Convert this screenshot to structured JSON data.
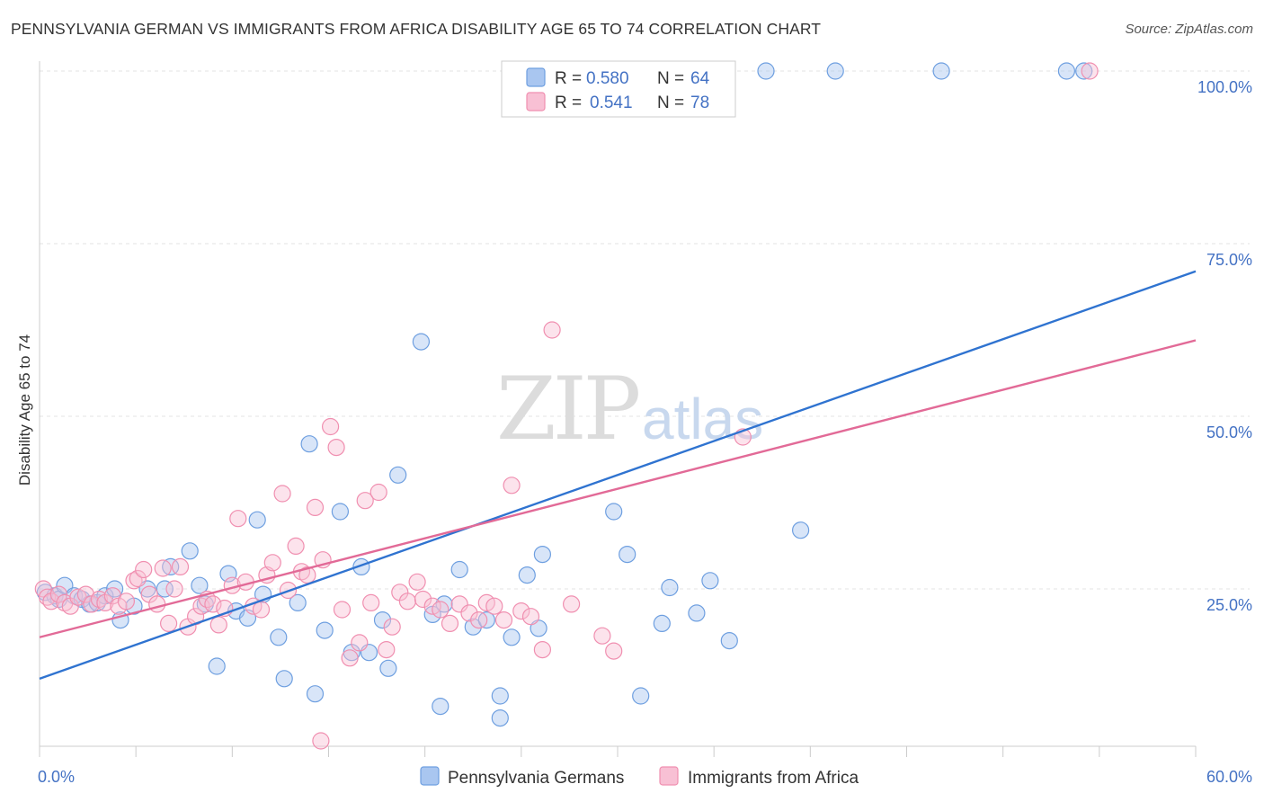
{
  "title": "PENNSYLVANIA GERMAN VS IMMIGRANTS FROM AFRICA DISABILITY AGE 65 TO 74 CORRELATION CHART",
  "source": "Source: ZipAtlas.com",
  "watermark": {
    "zip": "ZIP",
    "atlas": "atlas"
  },
  "chart_data": {
    "type": "scatter",
    "title": "PENNSYLVANIA GERMAN VS IMMIGRANTS FROM AFRICA DISABILITY AGE 65 TO 74 CORRELATION CHART",
    "xlabel": "",
    "ylabel": "Disability Age 65 to 74",
    "xlim": [
      0,
      60
    ],
    "ylim": [
      0,
      105
    ],
    "x_tick_labels": [
      "0.0%",
      "60.0%"
    ],
    "y_ticks": [
      25,
      50,
      75,
      100
    ],
    "y_tick_labels": [
      "25.0%",
      "50.0%",
      "75.0%",
      "100.0%"
    ],
    "grid": true,
    "legend_placement": "top-center",
    "legend": [
      {
        "r_label": "R =",
        "r_value": "0.580",
        "n_label": "N =",
        "n_value": "64"
      },
      {
        "r_label": "R =",
        "r_value": "0.541",
        "n_label": "N =",
        "n_value": "78"
      }
    ],
    "series": [
      {
        "name": "Pennsylvania Germans",
        "color": "#6E9FE0",
        "fill": "#A9C6F0",
        "line_color": "#2F73D0",
        "trend": {
          "x": [
            0,
            60
          ],
          "y": [
            12.0,
            71.0
          ]
        },
        "points": [
          [
            0.3,
            24.5
          ],
          [
            0.8,
            24.0
          ],
          [
            1.0,
            23.5
          ],
          [
            1.3,
            25.5
          ],
          [
            1.8,
            24.0
          ],
          [
            2.2,
            23.5
          ],
          [
            2.6,
            22.8
          ],
          [
            3.0,
            23.0
          ],
          [
            3.4,
            24.0
          ],
          [
            3.9,
            25.0
          ],
          [
            4.2,
            20.5
          ],
          [
            4.9,
            22.5
          ],
          [
            5.6,
            25.0
          ],
          [
            6.5,
            25.0
          ],
          [
            6.8,
            28.2
          ],
          [
            7.8,
            30.5
          ],
          [
            8.3,
            25.5
          ],
          [
            8.6,
            22.8
          ],
          [
            9.2,
            13.8
          ],
          [
            9.8,
            27.2
          ],
          [
            10.2,
            21.8
          ],
          [
            10.8,
            20.8
          ],
          [
            11.3,
            35.0
          ],
          [
            11.6,
            24.2
          ],
          [
            12.4,
            18.0
          ],
          [
            12.7,
            12.0
          ],
          [
            13.4,
            23.0
          ],
          [
            14.0,
            46.0
          ],
          [
            14.3,
            9.8
          ],
          [
            14.8,
            19.0
          ],
          [
            15.6,
            36.2
          ],
          [
            16.2,
            15.8
          ],
          [
            16.7,
            28.2
          ],
          [
            17.1,
            15.8
          ],
          [
            17.8,
            20.5
          ],
          [
            18.1,
            13.5
          ],
          [
            18.6,
            41.5
          ],
          [
            19.8,
            60.8
          ],
          [
            20.4,
            21.3
          ],
          [
            20.8,
            8.0
          ],
          [
            21.0,
            22.8
          ],
          [
            21.8,
            27.8
          ],
          [
            22.5,
            19.5
          ],
          [
            23.2,
            20.5
          ],
          [
            23.9,
            9.5
          ],
          [
            23.9,
            6.3
          ],
          [
            24.5,
            18.0
          ],
          [
            25.3,
            27.0
          ],
          [
            25.9,
            19.3
          ],
          [
            26.1,
            30.0
          ],
          [
            29.8,
            36.2
          ],
          [
            30.5,
            30.0
          ],
          [
            31.2,
            9.5
          ],
          [
            32.3,
            20.0
          ],
          [
            32.7,
            25.2
          ],
          [
            34.1,
            21.5
          ],
          [
            34.8,
            26.2
          ],
          [
            35.8,
            17.5
          ],
          [
            37.7,
            100.0
          ],
          [
            39.5,
            33.5
          ],
          [
            41.3,
            100.0
          ],
          [
            46.8,
            100.0
          ],
          [
            53.3,
            100.0
          ],
          [
            54.2,
            100.0
          ]
        ]
      },
      {
        "name": "Immigrants from Africa",
        "color": "#F08FB0",
        "fill": "#F8C0D4",
        "line_color": "#E26A97",
        "trend": {
          "x": [
            0,
            60
          ],
          "y": [
            18.0,
            61.0
          ]
        },
        "points": [
          [
            0.2,
            25.0
          ],
          [
            0.4,
            23.8
          ],
          [
            0.6,
            23.2
          ],
          [
            1.0,
            24.2
          ],
          [
            1.3,
            23.0
          ],
          [
            1.6,
            22.5
          ],
          [
            2.0,
            23.8
          ],
          [
            2.4,
            24.2
          ],
          [
            2.7,
            22.8
          ],
          [
            3.1,
            23.5
          ],
          [
            3.4,
            23.0
          ],
          [
            3.8,
            24.0
          ],
          [
            4.1,
            22.5
          ],
          [
            4.5,
            23.2
          ],
          [
            4.9,
            26.2
          ],
          [
            5.1,
            26.5
          ],
          [
            5.4,
            27.8
          ],
          [
            5.7,
            24.2
          ],
          [
            6.1,
            22.8
          ],
          [
            6.4,
            28.0
          ],
          [
            6.7,
            20.0
          ],
          [
            7.0,
            25.0
          ],
          [
            7.3,
            28.2
          ],
          [
            7.7,
            19.5
          ],
          [
            8.1,
            21.0
          ],
          [
            8.4,
            22.5
          ],
          [
            8.7,
            23.5
          ],
          [
            9.0,
            22.8
          ],
          [
            9.3,
            19.8
          ],
          [
            9.6,
            22.2
          ],
          [
            10.0,
            25.5
          ],
          [
            10.3,
            35.2
          ],
          [
            10.7,
            26.0
          ],
          [
            11.1,
            22.5
          ],
          [
            11.5,
            22.0
          ],
          [
            11.8,
            27.0
          ],
          [
            12.1,
            28.8
          ],
          [
            12.6,
            38.8
          ],
          [
            12.9,
            24.8
          ],
          [
            13.3,
            31.2
          ],
          [
            13.6,
            27.5
          ],
          [
            13.9,
            27.0
          ],
          [
            14.3,
            36.8
          ],
          [
            14.7,
            29.2
          ],
          [
            15.1,
            48.5
          ],
          [
            15.4,
            45.5
          ],
          [
            15.7,
            22.0
          ],
          [
            16.1,
            15.0
          ],
          [
            16.6,
            17.2
          ],
          [
            16.9,
            37.8
          ],
          [
            17.2,
            23.0
          ],
          [
            17.6,
            39.0
          ],
          [
            18.0,
            16.2
          ],
          [
            18.3,
            19.5
          ],
          [
            18.7,
            24.5
          ],
          [
            19.1,
            23.2
          ],
          [
            19.6,
            26.0
          ],
          [
            19.9,
            23.5
          ],
          [
            20.4,
            22.5
          ],
          [
            20.8,
            22.0
          ],
          [
            21.3,
            20.0
          ],
          [
            21.8,
            22.8
          ],
          [
            22.3,
            21.5
          ],
          [
            22.8,
            20.5
          ],
          [
            23.2,
            23.0
          ],
          [
            23.6,
            22.5
          ],
          [
            24.1,
            20.5
          ],
          [
            24.5,
            40.0
          ],
          [
            25.0,
            21.8
          ],
          [
            25.5,
            21.0
          ],
          [
            26.1,
            16.2
          ],
          [
            26.6,
            62.5
          ],
          [
            27.6,
            22.8
          ],
          [
            29.2,
            18.2
          ],
          [
            29.8,
            16.0
          ],
          [
            36.5,
            47.0
          ],
          [
            14.6,
            3.0
          ],
          [
            54.5,
            100.0
          ]
        ]
      }
    ]
  },
  "bottom_legend": [
    {
      "label": "Pennsylvania Germans"
    },
    {
      "label": "Immigrants from Africa"
    }
  ]
}
